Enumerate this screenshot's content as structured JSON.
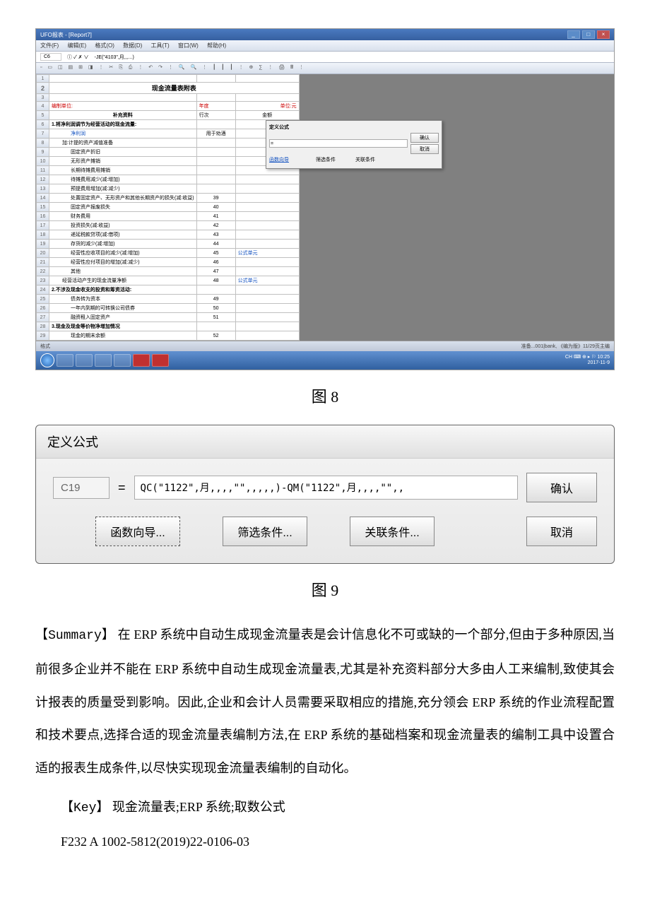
{
  "screenshot1": {
    "title": "UFO报表 - [Report7]",
    "menus": [
      "文件(F)",
      "编辑(E)",
      "格式(O)",
      "数据(D)",
      "工具(T)",
      "窗口(W)",
      "帮助(H)"
    ],
    "cell_ref": "C6",
    "formula_icons": "ⓘ ✓ ✗ ∨",
    "formula_text": "-JE(\"4103\",月,,,...)",
    "toolbar_icons": "▫ ▭ ◫ ▤ ⊞ ◨ ⋮ ✂ ⎘ ⎙ ⋮ ↶ ↷ ⋮ 🔍 🔍 ⋮ ┃ ┃ ┃ ⋮ ⊕ ∑ ⋮ 🖨 🖩 ⋮",
    "sheet_title": "现金流量表附表",
    "header_left": "编制单位:",
    "header_mid_label": "年度",
    "header_right": "单位:元",
    "col_b_header": "行次",
    "col_c_header": "金额",
    "rows": [
      {
        "n": "5",
        "a": "补充资料",
        "b": "",
        "c": "",
        "cls": "section"
      },
      {
        "n": "6",
        "a": "1.将净利润调节为经营活动的现金流量:",
        "b": "",
        "c": "",
        "cls": "section"
      },
      {
        "n": "7",
        "a": "净利润",
        "b": "用于劝酒",
        "c": "",
        "cls": "indent2 blue",
        "clink": ""
      },
      {
        "n": "8",
        "a": "加:计提的资产减值准备",
        "b": "",
        "c": "",
        "cls": "indent1"
      },
      {
        "n": "9",
        "a": "固定资产折旧",
        "b": "",
        "c": "",
        "cls": "indent2"
      },
      {
        "n": "10",
        "a": "无形资产摊销",
        "b": "",
        "c": "",
        "cls": "indent2"
      },
      {
        "n": "11",
        "a": "长期待摊费用摊销",
        "b": "",
        "c": "",
        "cls": "indent2"
      },
      {
        "n": "12",
        "a": "待摊费用减少(减:增加)",
        "b": "",
        "c": "",
        "cls": "indent2"
      },
      {
        "n": "13",
        "a": "预提费用增加(减:减少)",
        "b": "",
        "c": "",
        "cls": "indent2"
      },
      {
        "n": "14",
        "a": "处置固定资产、无形资产和其他长期资产的损失(减:收益)",
        "b": "39",
        "c": "",
        "cls": "indent2"
      },
      {
        "n": "15",
        "a": "固定资产报废损失",
        "b": "40",
        "c": "",
        "cls": "indent2"
      },
      {
        "n": "16",
        "a": "财务费用",
        "b": "41",
        "c": "",
        "cls": "indent2"
      },
      {
        "n": "17",
        "a": "投资损失(减:收益)",
        "b": "42",
        "c": "",
        "cls": "indent2"
      },
      {
        "n": "18",
        "a": "递延税款贷项(减:借项)",
        "b": "43",
        "c": "",
        "cls": "indent2"
      },
      {
        "n": "19",
        "a": "存货的减少(减:增加)",
        "b": "44",
        "c": "",
        "cls": "indent2"
      },
      {
        "n": "20",
        "a": "经营性应收项目的减少(减:增加)",
        "b": "45",
        "c": "公式单元",
        "cls": "indent2",
        "clink": "blue"
      },
      {
        "n": "21",
        "a": "经营性应付项目的增加(减:减少)",
        "b": "46",
        "c": "",
        "cls": "indent2"
      },
      {
        "n": "22",
        "a": "其他",
        "b": "47",
        "c": "",
        "cls": "indent2"
      },
      {
        "n": "23",
        "a": "经营活动产生的现金流量净额",
        "b": "48",
        "c": "公式单元",
        "cls": "indent1",
        "clink": "blue"
      },
      {
        "n": "24",
        "a": "2.不涉及现金收支的投资和筹资活动:",
        "b": "",
        "c": "",
        "cls": "section"
      },
      {
        "n": "25",
        "a": "债务转为资本",
        "b": "49",
        "c": "",
        "cls": "indent2"
      },
      {
        "n": "26",
        "a": "一年内到期的可转换公司债券",
        "b": "50",
        "c": "",
        "cls": "indent2"
      },
      {
        "n": "27",
        "a": "融资租入固定资产",
        "b": "51",
        "c": "",
        "cls": "indent2"
      },
      {
        "n": "28",
        "a": "3.现金及现金等价物净增加情况",
        "b": "",
        "c": "",
        "cls": "section"
      },
      {
        "n": "29",
        "a": "现金的期末余额",
        "b": "52",
        "c": "",
        "cls": "indent2"
      }
    ],
    "status_left": "格式",
    "status_right": "准备...001|bank, 《编为版》11/29页主编",
    "taskbar_right_1": "CH ⌨ ⊕ ▸ ⚐ 10:25",
    "taskbar_right_2": "2017-11-9",
    "mini_dialog": {
      "title": "定义公式",
      "cell": "",
      "formula": "= ",
      "btns": [
        "函数向导",
        "筛选条件",
        "关联条件"
      ],
      "confirm": "确认",
      "cancel": "取消"
    }
  },
  "fig8": "图 8",
  "screenshot2": {
    "title": "定义公式",
    "cell": "C19",
    "eq": "=",
    "formula": "QC(\"1122\",月,,,,\"\",,,,,)-QM(\"1122\",月,,,,\"\",,",
    "confirm": "确认",
    "cancel": "取消",
    "wizard": "函数向导...",
    "filter": "筛选条件...",
    "assoc": "关联条件..."
  },
  "fig9": "图 9",
  "summary_label": "【Summary】",
  "summary_text": " 在 ERP 系统中自动生成现金流量表是会计信息化不可或缺的一个部分,但由于多种原因,当前很多企业并不能在 ERP 系统中自动生成现金流量表,尤其是补充资料部分大多由人工来编制,致使其会计报表的质量受到影响。因此,企业和会计人员需要采取相应的措施,充分领会 ERP 系统的作业流程配置和技术要点,选择合适的现金流量表编制方法,在 ERP 系统的基础档案和现金流量表的编制工具中设置合适的报表生成条件,以尽快实现现金流量表编制的自动化。",
  "key_label": "【Key】",
  "key_text": " 现金流量表;ERP 系统;取数公式",
  "code": "F232      A      1002-5812(2019)22-0106-03"
}
